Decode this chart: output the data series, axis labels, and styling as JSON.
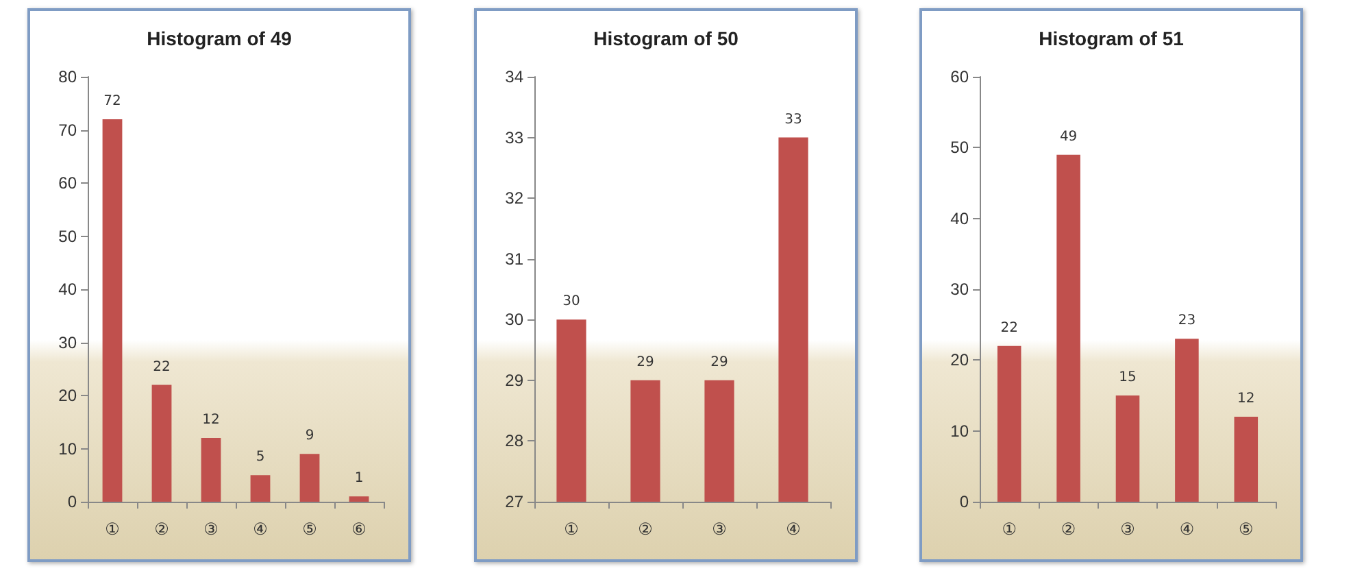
{
  "chart_data": [
    {
      "type": "bar",
      "title": "Histogram of 49",
      "categories": [
        "①",
        "②",
        "③",
        "④",
        "⑤",
        "⑥"
      ],
      "values": [
        72,
        22,
        12,
        5,
        9,
        1
      ],
      "color": "#c0504d",
      "ylim": [
        0,
        80
      ],
      "yticks": [
        0,
        10,
        20,
        30,
        40,
        50,
        60,
        70,
        80
      ],
      "data_labels": true
    },
    {
      "type": "bar",
      "title": "Histogram of 50",
      "categories": [
        "①",
        "②",
        "③",
        "④"
      ],
      "values": [
        30,
        29,
        29,
        33
      ],
      "color": "#c0504d",
      "ylim": [
        27,
        34
      ],
      "yticks": [
        27,
        28,
        29,
        30,
        31,
        32,
        33,
        34
      ],
      "data_labels": true
    },
    {
      "type": "bar",
      "title": "Histogram of 51",
      "categories": [
        "①",
        "②",
        "③",
        "④",
        "⑤"
      ],
      "values": [
        22,
        49,
        15,
        23,
        12
      ],
      "color": "#c0504d",
      "ylim": [
        0,
        60
      ],
      "yticks": [
        0,
        10,
        20,
        30,
        40,
        50,
        60
      ],
      "data_labels": true
    }
  ]
}
